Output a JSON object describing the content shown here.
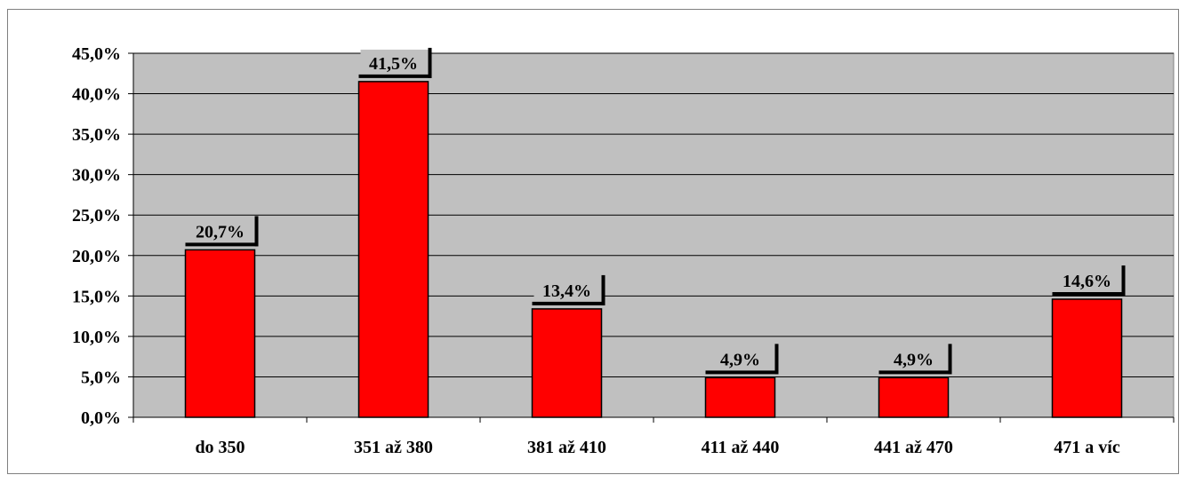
{
  "chart_data": {
    "type": "bar",
    "title": "",
    "xlabel": "",
    "ylabel": "",
    "categories": [
      "do 350",
      "351 až 380",
      "381 až 410",
      "411 až 440",
      "441 až 470",
      "471 a víc"
    ],
    "values": [
      20.7,
      41.5,
      13.4,
      4.9,
      4.9,
      14.6
    ],
    "value_labels": [
      "20,7%",
      "41,5%",
      "13,4%",
      "4,9%",
      "4,9%",
      "14,6%"
    ],
    "y_ticks": [
      {
        "value": 0,
        "label": "0,0%"
      },
      {
        "value": 5,
        "label": "5,0%"
      },
      {
        "value": 10,
        "label": "10,0%"
      },
      {
        "value": 15,
        "label": "15,0%"
      },
      {
        "value": 20,
        "label": "20,0%"
      },
      {
        "value": 25,
        "label": "25,0%"
      },
      {
        "value": 30,
        "label": "30,0%"
      },
      {
        "value": 35,
        "label": "35,0%"
      },
      {
        "value": 40,
        "label": "40,0%"
      },
      {
        "value": 45,
        "label": "45,0%"
      }
    ],
    "ylim": [
      0,
      45
    ],
    "grid": true,
    "legend": "none",
    "colors": {
      "bar": "#ff0000",
      "plot_background": "#c0c0c0",
      "gridline": "#000000",
      "bar_outline": "#000000"
    }
  }
}
